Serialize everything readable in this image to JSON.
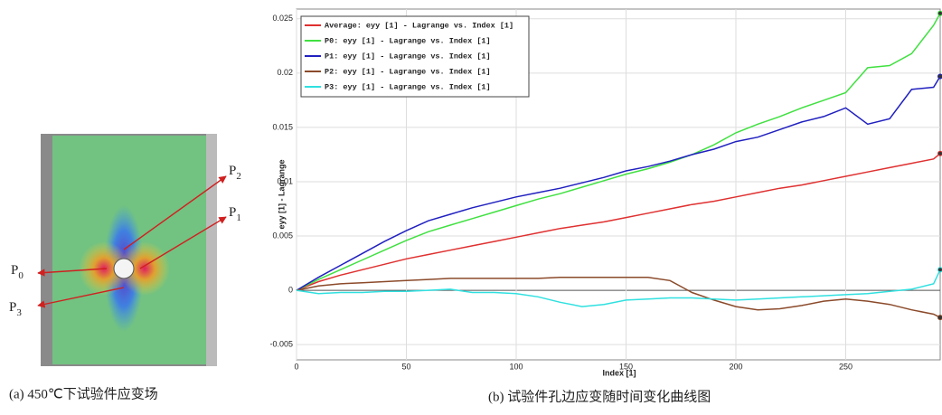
{
  "chart_data": {
    "type": "line",
    "xlabel": "Index [1]",
    "ylabel": "eyy [1] - Lagrange",
    "x": [
      0,
      10,
      20,
      30,
      40,
      50,
      60,
      70,
      80,
      90,
      100,
      110,
      120,
      130,
      140,
      150,
      160,
      170,
      180,
      190,
      200,
      210,
      220,
      230,
      240,
      250,
      260,
      270,
      280,
      290,
      293
    ],
    "series": [
      {
        "name": "Average: eyy [1] - Lagrange vs. Index [1]",
        "color": "#e03030",
        "values": [
          0,
          0.0008,
          0.0014,
          0.0019,
          0.0024,
          0.0029,
          0.0033,
          0.0037,
          0.0041,
          0.0045,
          0.0049,
          0.0053,
          0.0057,
          0.006,
          0.0063,
          0.0067,
          0.0071,
          0.0075,
          0.0079,
          0.0082,
          0.0086,
          0.009,
          0.0094,
          0.0097,
          0.0101,
          0.0105,
          0.0109,
          0.0113,
          0.0117,
          0.0121,
          0.0126
        ]
      },
      {
        "name": "P0: eyy [1] - Lagrange vs. Index [1]",
        "color": "#40e040",
        "values": [
          0,
          0.001,
          0.0019,
          0.0028,
          0.0037,
          0.0046,
          0.0054,
          0.006,
          0.0066,
          0.0072,
          0.0078,
          0.0084,
          0.0089,
          0.0095,
          0.0101,
          0.0107,
          0.0112,
          0.0118,
          0.0125,
          0.0134,
          0.0145,
          0.0153,
          0.016,
          0.0168,
          0.0175,
          0.0182,
          0.0205,
          0.0207,
          0.0218,
          0.0244,
          0.0255
        ]
      },
      {
        "name": "P1: eyy [1] - Lagrange vs. Index [1]",
        "color": "#2020c0",
        "values": [
          0,
          0.0012,
          0.0023,
          0.0034,
          0.0045,
          0.0055,
          0.0064,
          0.007,
          0.0076,
          0.0081,
          0.0086,
          0.009,
          0.0094,
          0.0099,
          0.0104,
          0.011,
          0.0114,
          0.0119,
          0.0125,
          0.013,
          0.0137,
          0.0141,
          0.0148,
          0.0155,
          0.016,
          0.0168,
          0.0153,
          0.0158,
          0.0185,
          0.0187,
          0.0197
        ]
      },
      {
        "name": "P2: eyy [1] - Lagrange vs. Index [1]",
        "color": "#8b4a2a",
        "values": [
          0,
          0.0004,
          0.0006,
          0.0007,
          0.0008,
          0.0009,
          0.001,
          0.0011,
          0.0011,
          0.0011,
          0.0011,
          0.0011,
          0.0012,
          0.0012,
          0.0012,
          0.0012,
          0.0012,
          0.0009,
          -0.0002,
          -0.0009,
          -0.0015,
          -0.0018,
          -0.0017,
          -0.0014,
          -0.001,
          -0.0008,
          -0.001,
          -0.0013,
          -0.0018,
          -0.0022,
          -0.0025
        ]
      },
      {
        "name": "P3: eyy [1] - Lagrange vs. Index [1]",
        "color": "#30e0e0",
        "values": [
          0,
          -0.0003,
          -0.0002,
          -0.0002,
          -0.0001,
          -0.0001,
          0,
          0.0001,
          -0.0002,
          -0.0002,
          -0.0003,
          -0.0006,
          -0.0011,
          -0.0015,
          -0.0013,
          -0.0009,
          -0.0008,
          -0.0007,
          -0.0007,
          -0.0008,
          -0.0009,
          -0.0008,
          -0.0007,
          -0.0006,
          -0.0005,
          -0.0004,
          -0.0003,
          -0.0001,
          0.0001,
          0.0006,
          0.0019
        ]
      }
    ],
    "xlim": [
      0,
      293
    ],
    "ylim": [
      -0.0064,
      0.0259
    ],
    "xticks": [
      0,
      50,
      100,
      150,
      200,
      250
    ],
    "yticks": [
      0.025,
      0.02,
      0.015,
      0.01,
      0.005,
      0,
      -0.005
    ],
    "grid": true,
    "legend": "upper left"
  },
  "specimen": {
    "points": [
      {
        "letter": "P",
        "sub": "0"
      },
      {
        "letter": "P",
        "sub": "1"
      },
      {
        "letter": "P",
        "sub": "2"
      },
      {
        "letter": "P",
        "sub": "3"
      }
    ],
    "caption": "(a)  450℃下试验件应变场"
  },
  "caption": "(b)  试验件孔边应变随时间变化曲线图"
}
